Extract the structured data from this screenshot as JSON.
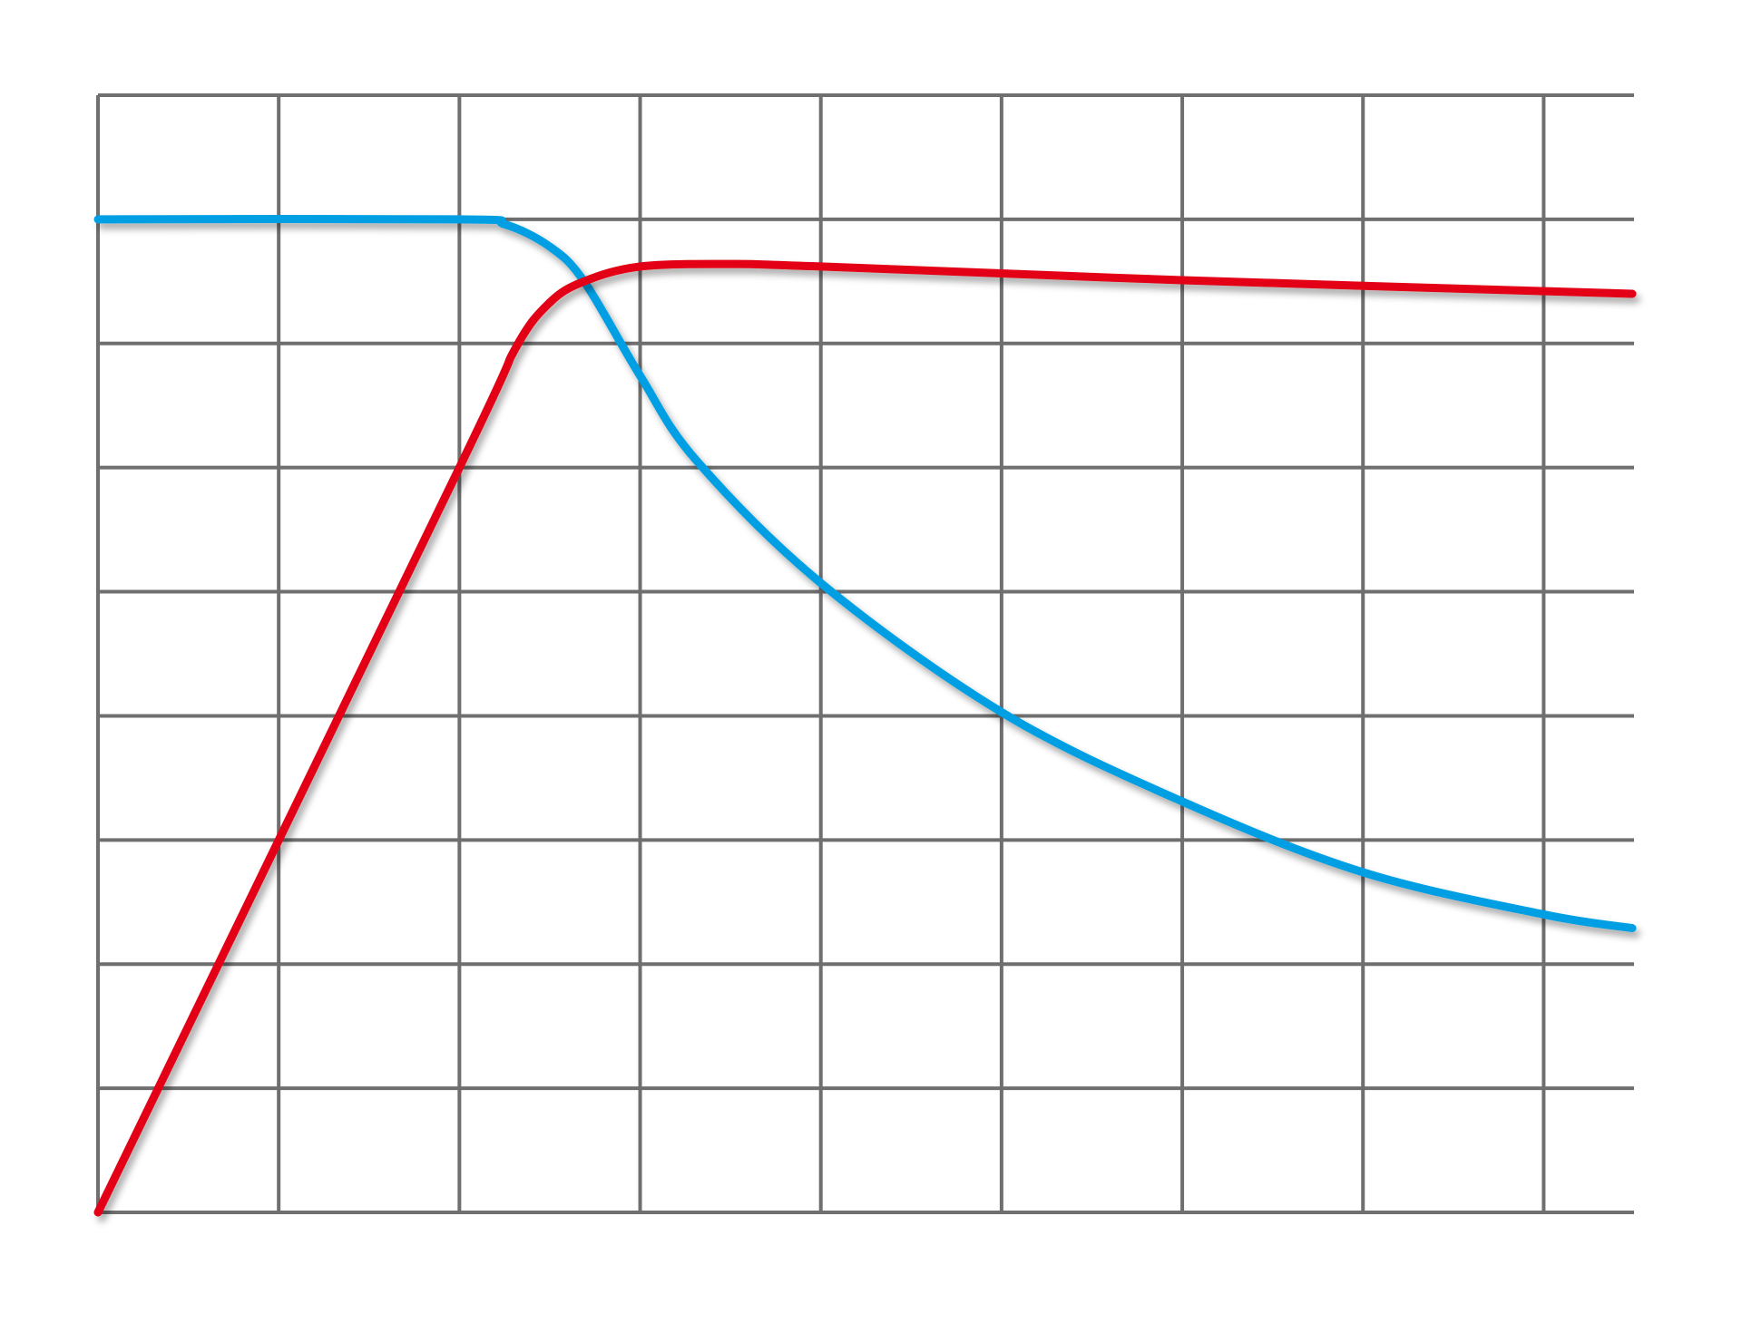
{
  "chart_data": {
    "type": "line",
    "title": "",
    "xlabel": "",
    "ylabel": "",
    "xlim": [
      0,
      8.5
    ],
    "ylim": [
      0,
      9
    ],
    "x_gridlines": [
      0,
      1,
      2,
      3,
      4,
      5,
      6,
      7,
      8
    ],
    "y_gridlines": [
      0,
      1,
      2,
      3,
      4,
      5,
      6,
      7,
      8,
      9
    ],
    "grid": true,
    "legend": "bottom",
    "series": [
      {
        "color": "#009fe3",
        "points": [
          [
            0,
            8
          ],
          [
            2,
            8
          ],
          [
            2.25,
            7.96
          ],
          [
            2.5,
            7.78
          ],
          [
            2.69,
            7.5
          ],
          [
            3,
            6.74
          ],
          [
            3.31,
            6.06
          ],
          [
            4,
            5.07
          ],
          [
            5,
            4.03
          ],
          [
            6,
            3.31
          ],
          [
            7,
            2.74
          ],
          [
            8,
            2.4
          ],
          [
            8.49,
            2.29
          ]
        ]
      },
      {
        "color": "#e30613",
        "points": [
          [
            0,
            0
          ],
          [
            2,
            6.0
          ],
          [
            2.31,
            6.96
          ],
          [
            2.5,
            7.33
          ],
          [
            2.69,
            7.5
          ],
          [
            3,
            7.62
          ],
          [
            3.49,
            7.64
          ],
          [
            4,
            7.62
          ],
          [
            6,
            7.51
          ],
          [
            8.49,
            7.4
          ]
        ]
      }
    ]
  }
}
